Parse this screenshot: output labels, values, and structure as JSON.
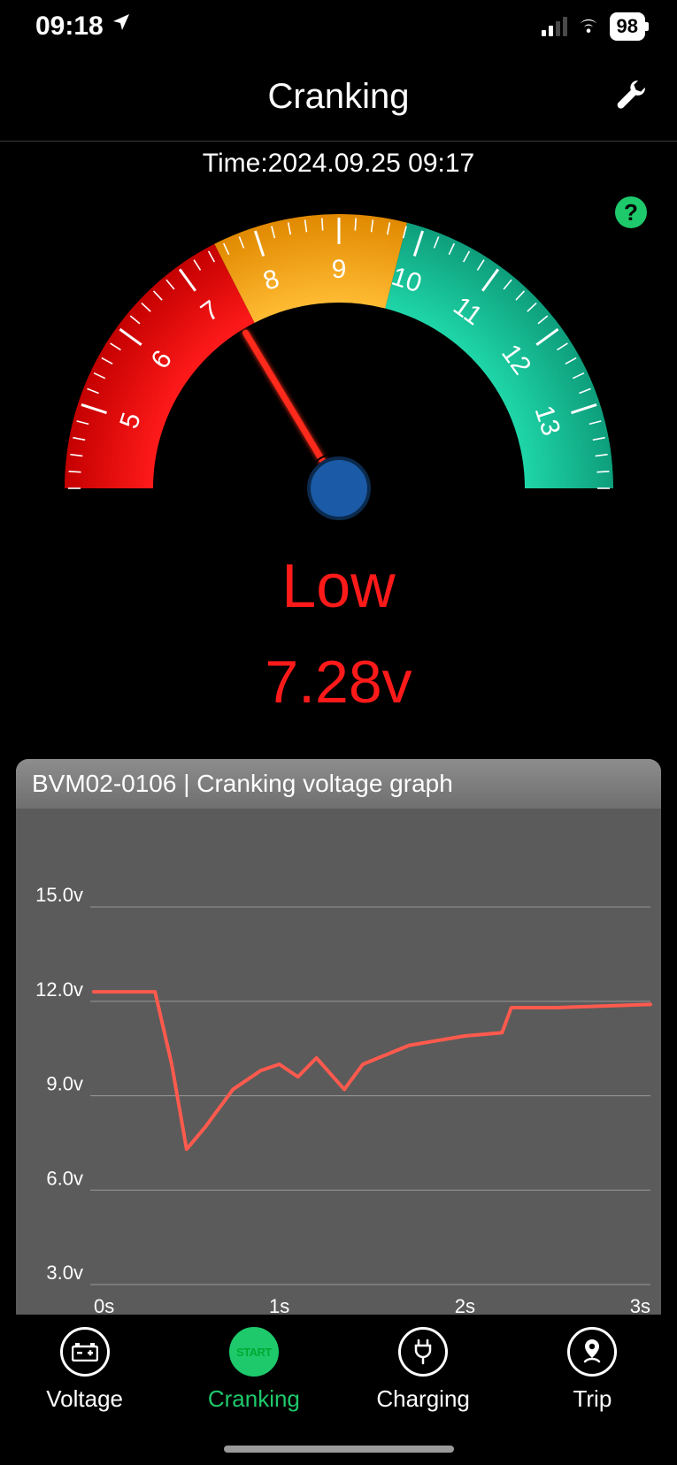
{
  "status_bar": {
    "time": "09:18",
    "battery_pct": "98",
    "signal_active_bars": 2,
    "signal_total_bars": 4
  },
  "header": {
    "title": "Cranking"
  },
  "time_row": {
    "prefix": "Time:",
    "value": "2024.09.25 09:17"
  },
  "gauge": {
    "min": 4,
    "max": 14,
    "value": 7.28,
    "zones": [
      {
        "from": 4,
        "to": 7.5,
        "color_inner": "#ff1a1a",
        "color_outer": "#c40000"
      },
      {
        "from": 7.5,
        "to": 9.8,
        "color_inner": "#ffbb33",
        "color_outer": "#e08900"
      },
      {
        "from": 9.8,
        "to": 14,
        "color_inner": "#1fd6a8",
        "color_outer": "#0e9e7c"
      }
    ],
    "major_ticks": [
      5,
      6,
      7,
      8,
      9,
      10,
      11,
      12,
      13
    ],
    "needle_color": "#ff2a1a",
    "hub_fill": "#1a5aa6",
    "hub_stroke": "#0b2a4d",
    "tick_color": "#ffffff",
    "label_color": "#ffffff",
    "label_fontsize": 30
  },
  "readout": {
    "status_text": "Low",
    "status_color": "#ff1a1a",
    "voltage_text": "7.28v",
    "voltage_color": "#ff1a1a"
  },
  "help_badge": {
    "text": "?"
  },
  "chart": {
    "title": "BVM02-0106 | Cranking voltage graph",
    "type": "line",
    "background_color": "#5b5b5b",
    "grid_color": "#9a9a9a",
    "axis_label_color": "#ffffff",
    "axis_label_fontsize": 22,
    "line_color": "#ff5a4d",
    "line_width": 4,
    "x_min": 0,
    "x_max": 3,
    "y_min": 3,
    "y_max": 17,
    "y_ticks": [
      3.0,
      6.0,
      9.0,
      12.0,
      15.0
    ],
    "y_tick_labels": [
      "3.0v",
      "6.0v",
      "9.0v",
      "12.0v",
      "15.0v"
    ],
    "x_ticks": [
      0,
      1,
      2,
      3
    ],
    "x_tick_labels": [
      "0s",
      "1s",
      "2s",
      "3s"
    ],
    "points": [
      [
        0.0,
        12.3
      ],
      [
        0.25,
        12.3
      ],
      [
        0.33,
        12.3
      ],
      [
        0.42,
        10.0
      ],
      [
        0.5,
        7.3
      ],
      [
        0.6,
        8.0
      ],
      [
        0.75,
        9.2
      ],
      [
        0.9,
        9.8
      ],
      [
        1.0,
        10.0
      ],
      [
        1.1,
        9.6
      ],
      [
        1.2,
        10.2
      ],
      [
        1.35,
        9.2
      ],
      [
        1.45,
        10.0
      ],
      [
        1.7,
        10.6
      ],
      [
        2.0,
        10.9
      ],
      [
        2.2,
        11.0
      ],
      [
        2.25,
        11.8
      ],
      [
        2.5,
        11.8
      ],
      [
        3.0,
        11.9
      ]
    ]
  },
  "tabs": [
    {
      "id": "voltage",
      "label": "Voltage",
      "active": false
    },
    {
      "id": "cranking",
      "label": "Cranking",
      "active": true
    },
    {
      "id": "charging",
      "label": "Charging",
      "active": false
    },
    {
      "id": "trip",
      "label": "Trip",
      "active": false
    }
  ]
}
